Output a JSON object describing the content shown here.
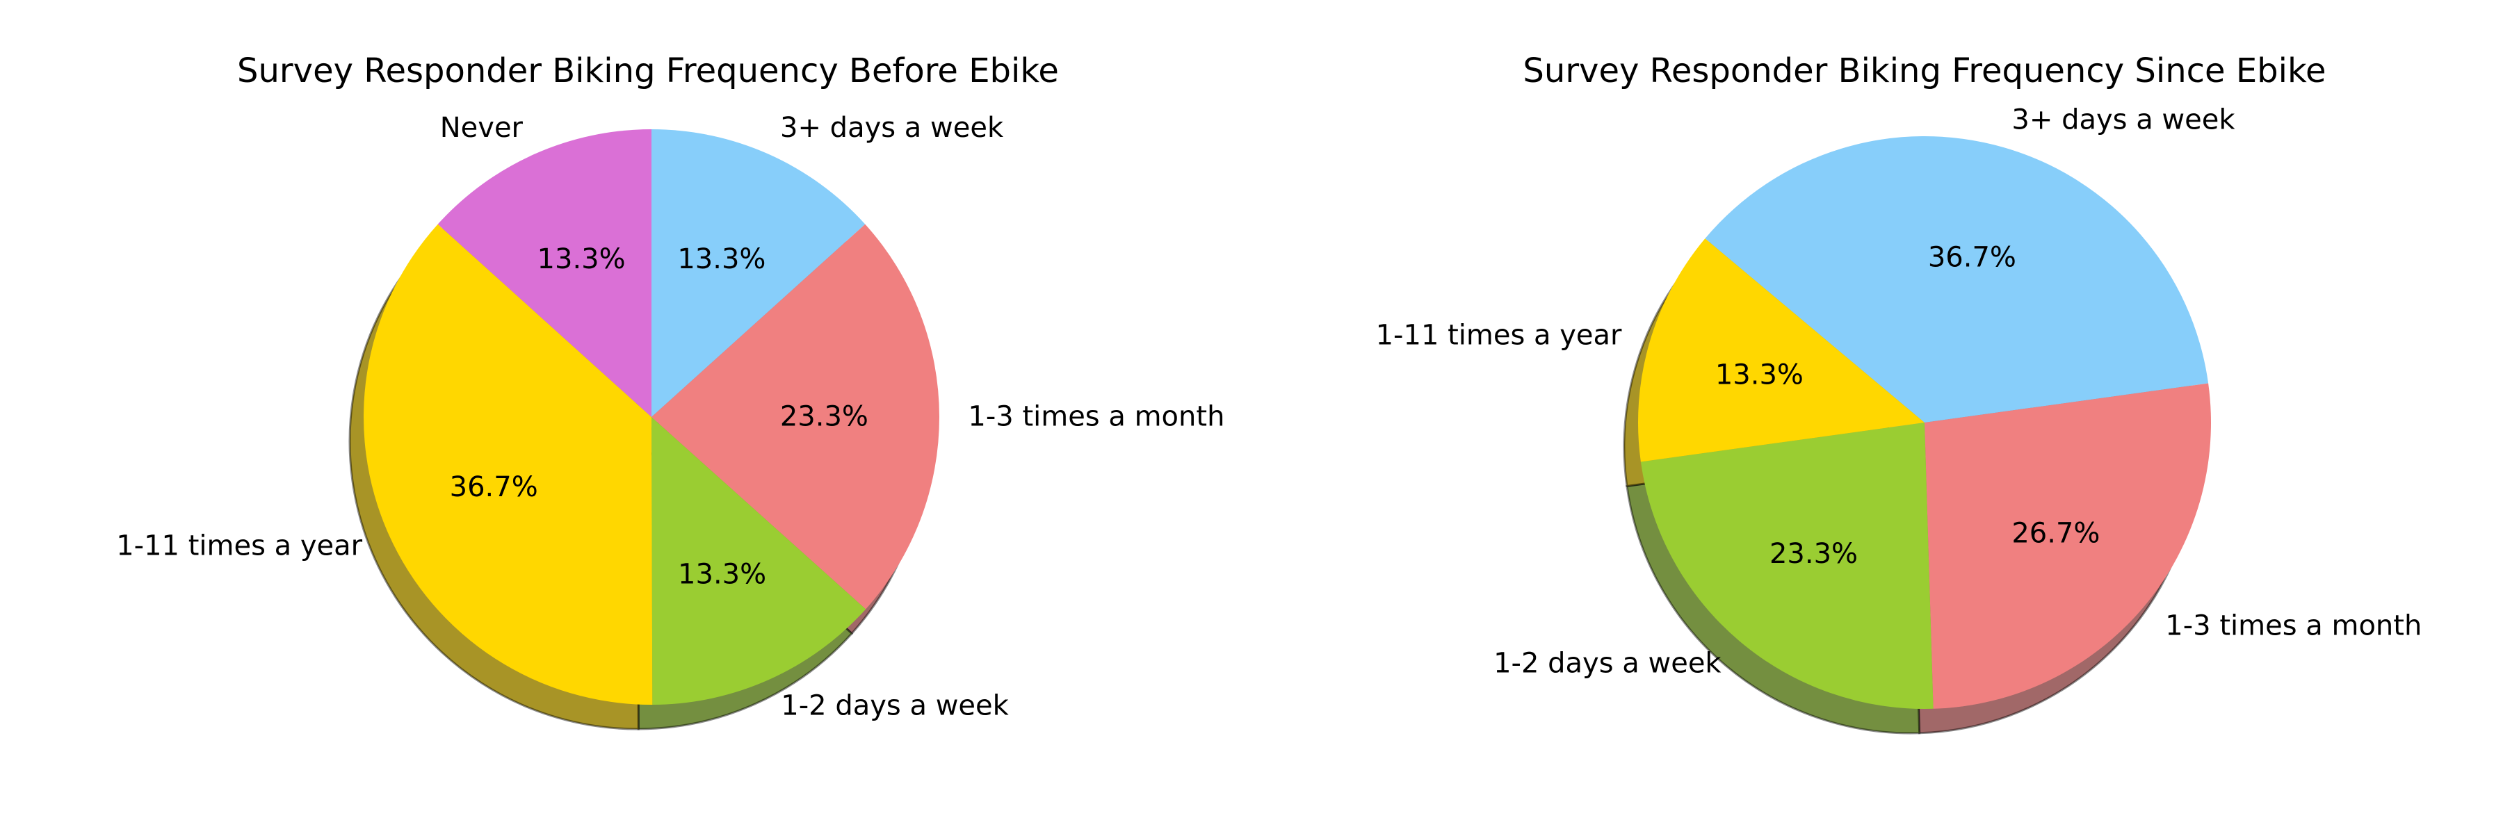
{
  "chart_data": [
    {
      "type": "pie",
      "title": "Survey Responder Biking Frequency Before Ebike",
      "slices": [
        {
          "label": "3+ days a week",
          "value": 13.3,
          "pct_label": "13.3%",
          "color": "#87CEFA"
        },
        {
          "label": "1-3 times a month",
          "value": 23.3,
          "pct_label": "23.3%",
          "color": "#F08080"
        },
        {
          "label": "1-2 days a week",
          "value": 13.3,
          "pct_label": "13.3%",
          "color": "#9ACD32"
        },
        {
          "label": "1-11 times a year",
          "value": 36.7,
          "pct_label": "36.7%",
          "color": "#FFD700"
        },
        {
          "label": "Never",
          "value": 13.3,
          "pct_label": "13.3%",
          "color": "#DA70D6"
        }
      ],
      "shadow": true
    },
    {
      "type": "pie",
      "title": "Survey Responder Biking Frequency Since Ebike",
      "slices": [
        {
          "label": "3+ days a week",
          "value": 36.7,
          "pct_label": "36.7%",
          "color": "#87CEFA"
        },
        {
          "label": "1-3 times a month",
          "value": 26.7,
          "pct_label": "26.7%",
          "color": "#F08080"
        },
        {
          "label": "1-2 days a week",
          "value": 23.3,
          "pct_label": "23.3%",
          "color": "#9ACD32"
        },
        {
          "label": "1-11 times a year",
          "value": 13.3,
          "pct_label": "13.3%",
          "color": "#FFD700"
        }
      ],
      "shadow": true
    }
  ]
}
